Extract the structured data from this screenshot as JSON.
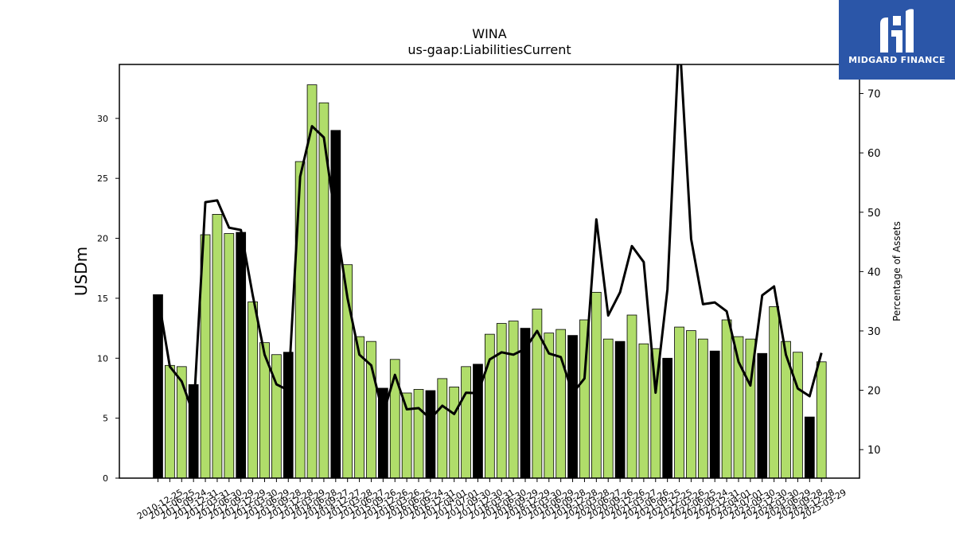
{
  "chart_data": {
    "type": "bar",
    "title": "WINA",
    "subtitle": "us-gaap:LiabilitiesCurrent",
    "ylabel": "USDm",
    "y2label": "Percentage of Assets",
    "ylim": [
      0,
      34.5
    ],
    "y2lim": [
      5.2,
      74.9
    ],
    "yticks": [
      0,
      5,
      10,
      15,
      20,
      25,
      30
    ],
    "y2ticks": [
      10,
      20,
      30,
      40,
      50,
      60,
      70
    ],
    "grid": false,
    "colors": {
      "bar_default": "#b0dd6a",
      "bar_highlight": "#000000",
      "line": "#000000",
      "bar_edge": "#000000"
    },
    "categories": [
      "2010-12-25",
      "2011-06-25",
      "2011-09-24",
      "2011-12-31",
      "2012-03-31",
      "2012-06-30",
      "2012-09-29",
      "2012-12-29",
      "2013-03-30",
      "2013-06-29",
      "2013-09-28",
      "2013-12-28",
      "2014-03-29",
      "2014-06-28",
      "2014-09-27",
      "2014-12-27",
      "2015-03-28",
      "2015-06-27",
      "2015-09-26",
      "2015-12-26",
      "2016-03-26",
      "2016-06-25",
      "2016-09-24",
      "2016-12-31",
      "2017-04-01",
      "2017-07-01",
      "2017-09-30",
      "2017-12-30",
      "2018-03-31",
      "2018-06-30",
      "2018-09-29",
      "2018-12-29",
      "2019-03-30",
      "2019-06-29",
      "2019-09-28",
      "2019-12-28",
      "2020-03-28",
      "2020-06-27",
      "2020-09-26",
      "2020-12-26",
      "2021-03-27",
      "2021-06-26",
      "2021-09-25",
      "2021-12-25",
      "2022-03-26",
      "2022-06-25",
      "2022-09-24",
      "2022-12-31",
      "2023-04-01",
      "2023-07-01",
      "2023-09-30",
      "2023-12-30",
      "2024-03-30",
      "2024-06-29",
      "2024-09-28",
      "2024-12-28",
      "2025-03-29"
    ],
    "series": [
      {
        "kind": "bar",
        "axis": "left",
        "values": [
          15.3,
          9.4,
          9.3,
          7.8,
          20.3,
          22.0,
          20.4,
          20.5,
          14.7,
          11.3,
          10.3,
          10.5,
          26.4,
          32.8,
          31.3,
          29.0,
          17.8,
          11.8,
          11.4,
          7.5,
          9.9,
          7.1,
          7.4,
          7.3,
          8.3,
          7.6,
          9.3,
          9.5,
          12.0,
          12.9,
          13.1,
          12.5,
          14.1,
          12.1,
          12.4,
          11.9,
          13.2,
          15.5,
          11.6,
          11.4,
          13.6,
          11.2,
          10.8,
          10.0,
          12.6,
          12.3,
          11.6,
          10.6,
          13.2,
          11.8,
          11.6,
          10.4,
          14.3,
          11.4,
          10.5,
          5.1,
          9.7
        ],
        "highlight": [
          true,
          false,
          false,
          true,
          false,
          false,
          false,
          true,
          false,
          false,
          false,
          true,
          false,
          false,
          false,
          true,
          false,
          false,
          false,
          true,
          false,
          false,
          false,
          true,
          false,
          false,
          false,
          true,
          false,
          false,
          false,
          true,
          false,
          false,
          false,
          true,
          false,
          false,
          false,
          true,
          false,
          false,
          false,
          true,
          false,
          false,
          false,
          true,
          false,
          false,
          false,
          true,
          false,
          false,
          false,
          true,
          false
        ]
      },
      {
        "kind": "line",
        "axis": "right",
        "values": [
          36.0,
          24.0,
          21.5,
          16.0,
          51.7,
          52.0,
          47.4,
          47.0,
          36.0,
          26.0,
          21.0,
          20.0,
          56.0,
          64.5,
          62.6,
          48.5,
          35.5,
          26.0,
          24.2,
          16.0,
          22.6,
          16.8,
          17.0,
          15.2,
          17.4,
          16.0,
          19.6,
          19.5,
          25.2,
          26.4,
          26.0,
          27.0,
          30.0,
          26.2,
          25.6,
          19.5,
          22.0,
          48.8,
          32.6,
          36.5,
          44.3,
          41.6,
          19.6,
          37.0,
          80.0,
          45.5,
          34.5,
          34.8,
          33.3,
          24.8,
          20.8,
          36.0,
          37.5,
          26.0,
          20.3,
          19.0,
          26.3
        ]
      }
    ]
  },
  "logo": {
    "text": "MIDGARD FINANCE",
    "icon": "midgard-m-icon"
  }
}
